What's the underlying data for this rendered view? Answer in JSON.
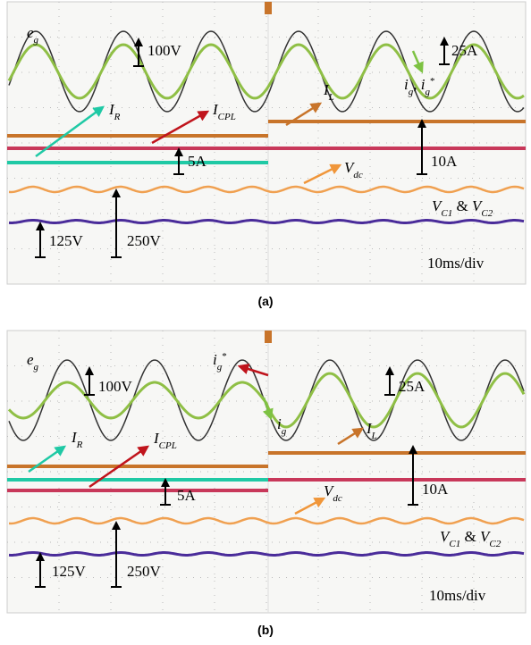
{
  "panels": [
    {
      "caption": "(a)",
      "texts": [
        [
          "e",
          "g"
        ],
        [
          "100V"
        ],
        [
          "25A"
        ],
        [
          "I",
          "R"
        ],
        [
          "I",
          "CPL"
        ],
        [
          "I",
          "L"
        ],
        [
          "i",
          "g",
          ", ",
          "i",
          "g",
          "*"
        ],
        [
          "5A"
        ],
        [
          "V",
          "dc"
        ],
        [
          "10A"
        ],
        [
          "V",
          "C1",
          " & ",
          "V",
          "C2"
        ],
        [
          "125V"
        ],
        [
          "250V"
        ],
        [
          "10ms/div"
        ]
      ]
    },
    {
      "caption": "(b)",
      "texts": [
        [
          "e",
          "g"
        ],
        [
          "100V"
        ],
        [
          "25A"
        ],
        [
          "i",
          "g",
          "*"
        ],
        [
          "i",
          "g"
        ],
        [
          "I",
          "L"
        ],
        [
          "I",
          "R"
        ],
        [
          "I",
          "CPL"
        ],
        [
          "5A"
        ],
        [
          "V",
          "dc"
        ],
        [
          "10A"
        ],
        [
          "V",
          "C1",
          " & ",
          "V",
          "C2"
        ],
        [
          "125V"
        ],
        [
          "250V"
        ],
        [
          "10ms/div"
        ]
      ]
    }
  ]
}
